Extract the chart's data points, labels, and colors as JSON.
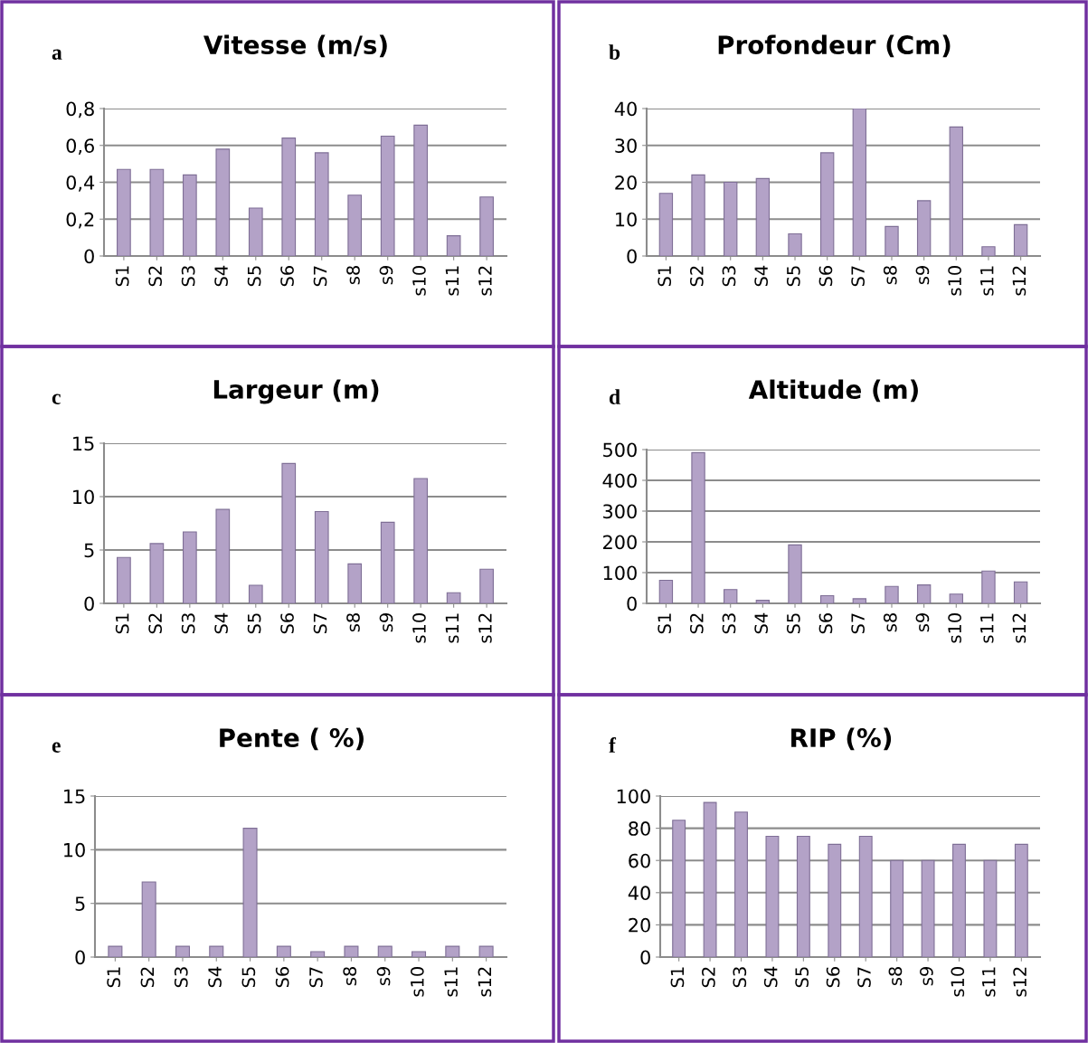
{
  "chart_data": [
    {
      "type": "bar",
      "title": "Vitesse (m/s)",
      "annotations": [
        "a"
      ],
      "categories": [
        "S1",
        "S2",
        "S3",
        "S4",
        "S5",
        "S6",
        "S7",
        "s8",
        "s9",
        "s10",
        "s11",
        "s12"
      ],
      "values": [
        0.47,
        0.47,
        0.44,
        0.58,
        0.26,
        0.64,
        0.56,
        0.33,
        0.65,
        0.71,
        0.11,
        0.32
      ],
      "color": "#b3a2c7",
      "ylim": [
        0,
        0.8
      ],
      "yticks": [
        {
          "value": 0,
          "label": "0"
        },
        {
          "value": 0.2,
          "label": "0,2"
        },
        {
          "value": 0.4,
          "label": "0,4"
        },
        {
          "value": 0.6,
          "label": "0,6"
        },
        {
          "value": 0.8,
          "label": "0,8"
        }
      ],
      "grid": "y"
    },
    {
      "type": "bar",
      "title": "Profondeur (Cm)",
      "annotations": [
        "b"
      ],
      "categories": [
        "S1",
        "S2",
        "S3",
        "S4",
        "S5",
        "S6",
        "S7",
        "s8",
        "s9",
        "s10",
        "s11",
        "s12"
      ],
      "values": [
        17,
        22,
        20,
        21,
        6,
        28,
        40,
        8,
        15,
        35,
        2.5,
        8.5
      ],
      "color": "#b3a2c7",
      "ylim": [
        0,
        40
      ],
      "yticks": [
        0,
        10,
        20,
        30,
        40
      ],
      "grid": "y"
    },
    {
      "type": "bar",
      "title": "Largeur (m)",
      "annotations": [
        "c"
      ],
      "categories": [
        "S1",
        "S2",
        "S3",
        "S4",
        "S5",
        "S6",
        "S7",
        "s8",
        "s9",
        "s10",
        "s11",
        "s12"
      ],
      "values": [
        4.3,
        5.6,
        6.7,
        8.8,
        1.7,
        13.1,
        8.6,
        3.7,
        7.6,
        11.7,
        1.0,
        3.2
      ],
      "color": "#b3a2c7",
      "ylim": [
        0,
        15
      ],
      "yticks": [
        0,
        5,
        10,
        15
      ],
      "grid": "y"
    },
    {
      "type": "bar",
      "title": "Altitude (m)",
      "annotations": [
        "d"
      ],
      "categories": [
        "S1",
        "S2",
        "S3",
        "S4",
        "S5",
        "S6",
        "S7",
        "s8",
        "s9",
        "s10",
        "s11",
        "s12"
      ],
      "values": [
        75,
        490,
        45,
        10,
        190,
        25,
        15,
        55,
        60,
        30,
        105,
        70
      ],
      "color": "#b3a2c7",
      "ylim": [
        0,
        500
      ],
      "yticks": [
        0,
        100,
        200,
        300,
        400,
        500
      ],
      "grid": "y"
    },
    {
      "type": "bar",
      "title": "Pente ( %)",
      "annotations": [
        "e"
      ],
      "categories": [
        "S1",
        "S2",
        "S3",
        "S4",
        "S5",
        "S6",
        "S7",
        "s8",
        "s9",
        "s10",
        "s11",
        "s12"
      ],
      "values": [
        1,
        7,
        1,
        1,
        12,
        1,
        0.5,
        1,
        1,
        0.5,
        1,
        1
      ],
      "color": "#b3a2c7",
      "ylim": [
        0,
        15
      ],
      "yticks": [
        0,
        5,
        10,
        15
      ],
      "grid": "y"
    },
    {
      "type": "bar",
      "title": "RIP (%)",
      "annotations": [
        "f"
      ],
      "categories": [
        "S1",
        "S2",
        "S3",
        "S4",
        "S5",
        "S6",
        "S7",
        "s8",
        "s9",
        "s10",
        "s11",
        "s12"
      ],
      "values": [
        85,
        96,
        90,
        75,
        75,
        70,
        75,
        60,
        60,
        70,
        60,
        70
      ],
      "color": "#b3a2c7",
      "ylim": [
        0,
        100
      ],
      "yticks": [
        0,
        20,
        40,
        60,
        80,
        100
      ],
      "grid": "y"
    }
  ]
}
